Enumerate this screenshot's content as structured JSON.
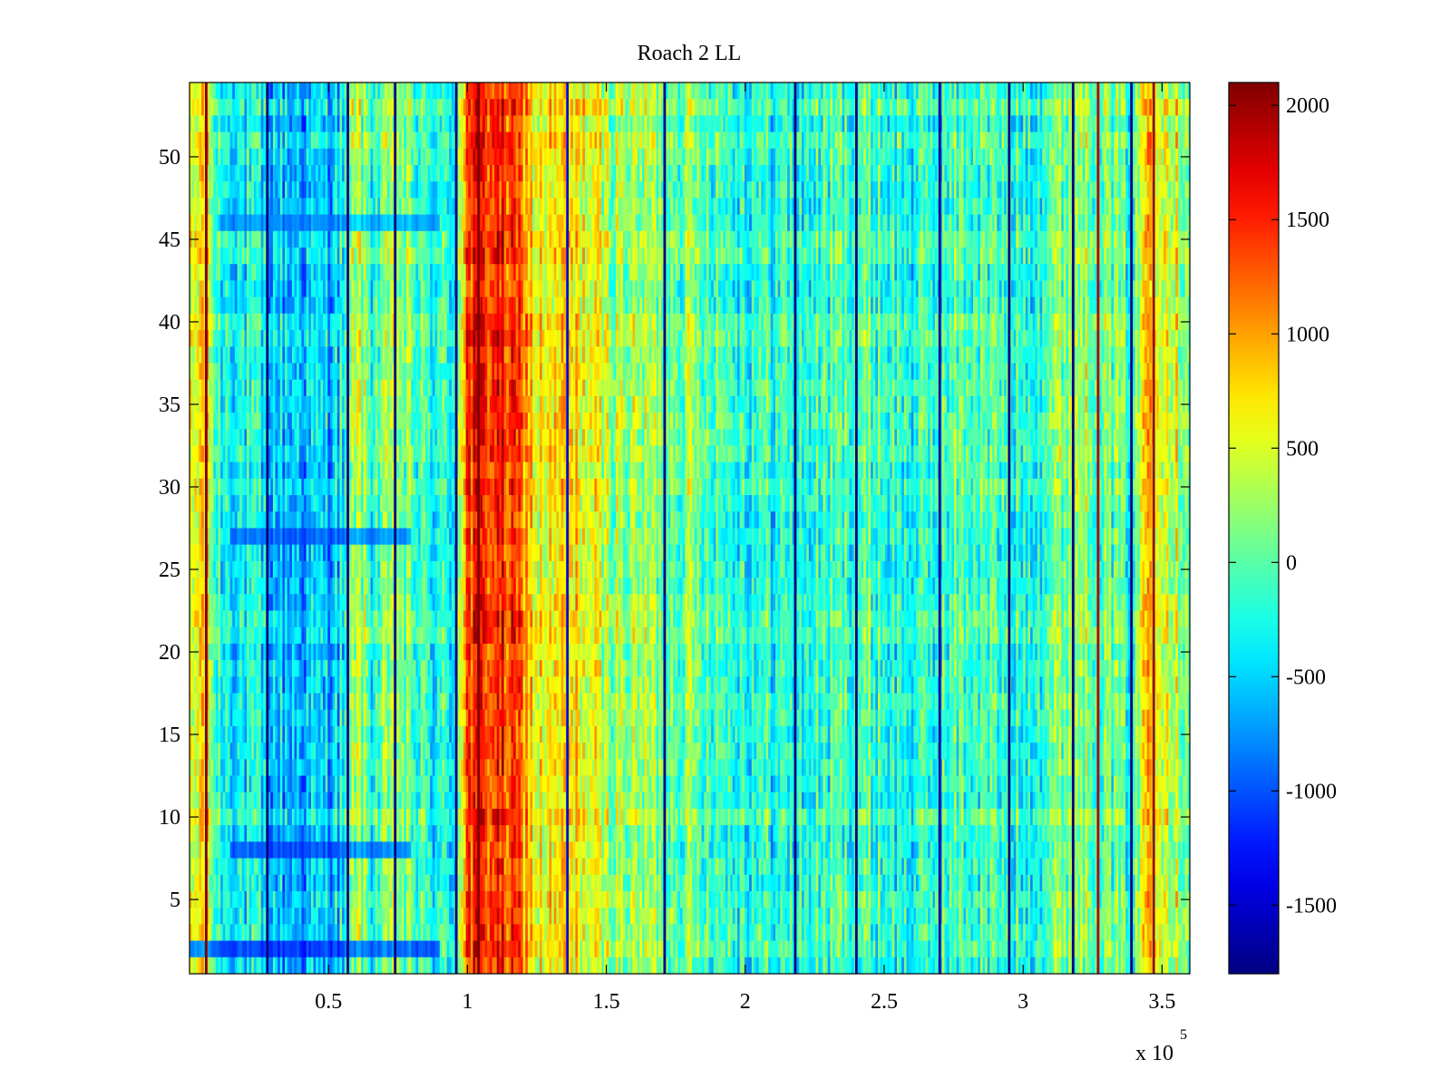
{
  "chart_data": {
    "type": "heatmap",
    "title": "Roach 2 LL",
    "xlabel": "",
    "ylabel": "",
    "x_multiplier_label": "x 10",
    "x_multiplier_exponent": "5",
    "xlim": [
      0,
      360000
    ],
    "ylim": [
      0.5,
      54.5
    ],
    "x_ticks": [
      50000,
      100000,
      150000,
      200000,
      250000,
      300000,
      350000
    ],
    "x_tick_labels": [
      "0.5",
      "1",
      "1.5",
      "2",
      "2.5",
      "3",
      "3.5"
    ],
    "y_ticks": [
      5,
      10,
      15,
      20,
      25,
      30,
      35,
      40,
      45,
      50
    ],
    "y_tick_labels": [
      "5",
      "10",
      "15",
      "20",
      "25",
      "30",
      "35",
      "40",
      "45",
      "50"
    ],
    "rows": 54,
    "colorbar": {
      "colormap": "jet",
      "clim": [
        -1800,
        2100
      ],
      "ticks": [
        -1500,
        -1000,
        -500,
        0,
        500,
        1000,
        1500,
        2000
      ],
      "tick_labels": [
        "-1500",
        "-1000",
        "-500",
        "0",
        "500",
        "1000",
        "1500",
        "2000"
      ]
    },
    "column_profile": [
      {
        "x": 0,
        "value": 250
      },
      {
        "x": 5000,
        "value": 900
      },
      {
        "x": 10000,
        "value": -150
      },
      {
        "x": 20000,
        "value": -300
      },
      {
        "x": 30000,
        "value": -500
      },
      {
        "x": 40000,
        "value": -550
      },
      {
        "x": 50000,
        "value": -500
      },
      {
        "x": 56000,
        "value": -350
      },
      {
        "x": 60000,
        "value": 500
      },
      {
        "x": 65000,
        "value": -100
      },
      {
        "x": 75000,
        "value": 200
      },
      {
        "x": 85000,
        "value": -200
      },
      {
        "x": 95000,
        "value": -250
      },
      {
        "x": 100000,
        "value": 1400
      },
      {
        "x": 110000,
        "value": 1550
      },
      {
        "x": 120000,
        "value": 1200
      },
      {
        "x": 125000,
        "value": 600
      },
      {
        "x": 140000,
        "value": 700
      },
      {
        "x": 150000,
        "value": 350
      },
      {
        "x": 165000,
        "value": 250
      },
      {
        "x": 180000,
        "value": 150
      },
      {
        "x": 200000,
        "value": -150
      },
      {
        "x": 220000,
        "value": -200
      },
      {
        "x": 240000,
        "value": 0
      },
      {
        "x": 260000,
        "value": -250
      },
      {
        "x": 280000,
        "value": 0
      },
      {
        "x": 300000,
        "value": -200
      },
      {
        "x": 320000,
        "value": 350
      },
      {
        "x": 330000,
        "value": 100
      },
      {
        "x": 340000,
        "value": -100
      },
      {
        "x": 345000,
        "value": 1100
      },
      {
        "x": 350000,
        "value": 700
      },
      {
        "x": 360000,
        "value": 250
      }
    ],
    "vertical_lines": [
      {
        "x": 28000,
        "value": -1800
      },
      {
        "x": 57000,
        "value": -1800
      },
      {
        "x": 74000,
        "value": -1800
      },
      {
        "x": 96000,
        "value": -1800
      },
      {
        "x": 136000,
        "value": -1500
      },
      {
        "x": 171000,
        "value": -1800
      },
      {
        "x": 218000,
        "value": -1800
      },
      {
        "x": 240000,
        "value": -1800
      },
      {
        "x": 270000,
        "value": -1700
      },
      {
        "x": 295000,
        "value": -1800
      },
      {
        "x": 318000,
        "value": -1800
      },
      {
        "x": 339000,
        "value": -1800
      },
      {
        "x": 6000,
        "value": 2100
      },
      {
        "x": 104000,
        "value": 2100
      },
      {
        "x": 327000,
        "value": 1900
      },
      {
        "x": 347000,
        "value": 2000
      }
    ],
    "row_bands": [
      {
        "row": 2,
        "x_range": [
          0,
          90000
        ],
        "value": -1400
      },
      {
        "row": 8,
        "x_range": [
          15000,
          80000
        ],
        "value": -1200
      },
      {
        "row": 27,
        "x_range": [
          15000,
          80000
        ],
        "value": -1100
      },
      {
        "row": 46,
        "x_range": [
          10000,
          90000
        ],
        "value": -900
      }
    ]
  }
}
